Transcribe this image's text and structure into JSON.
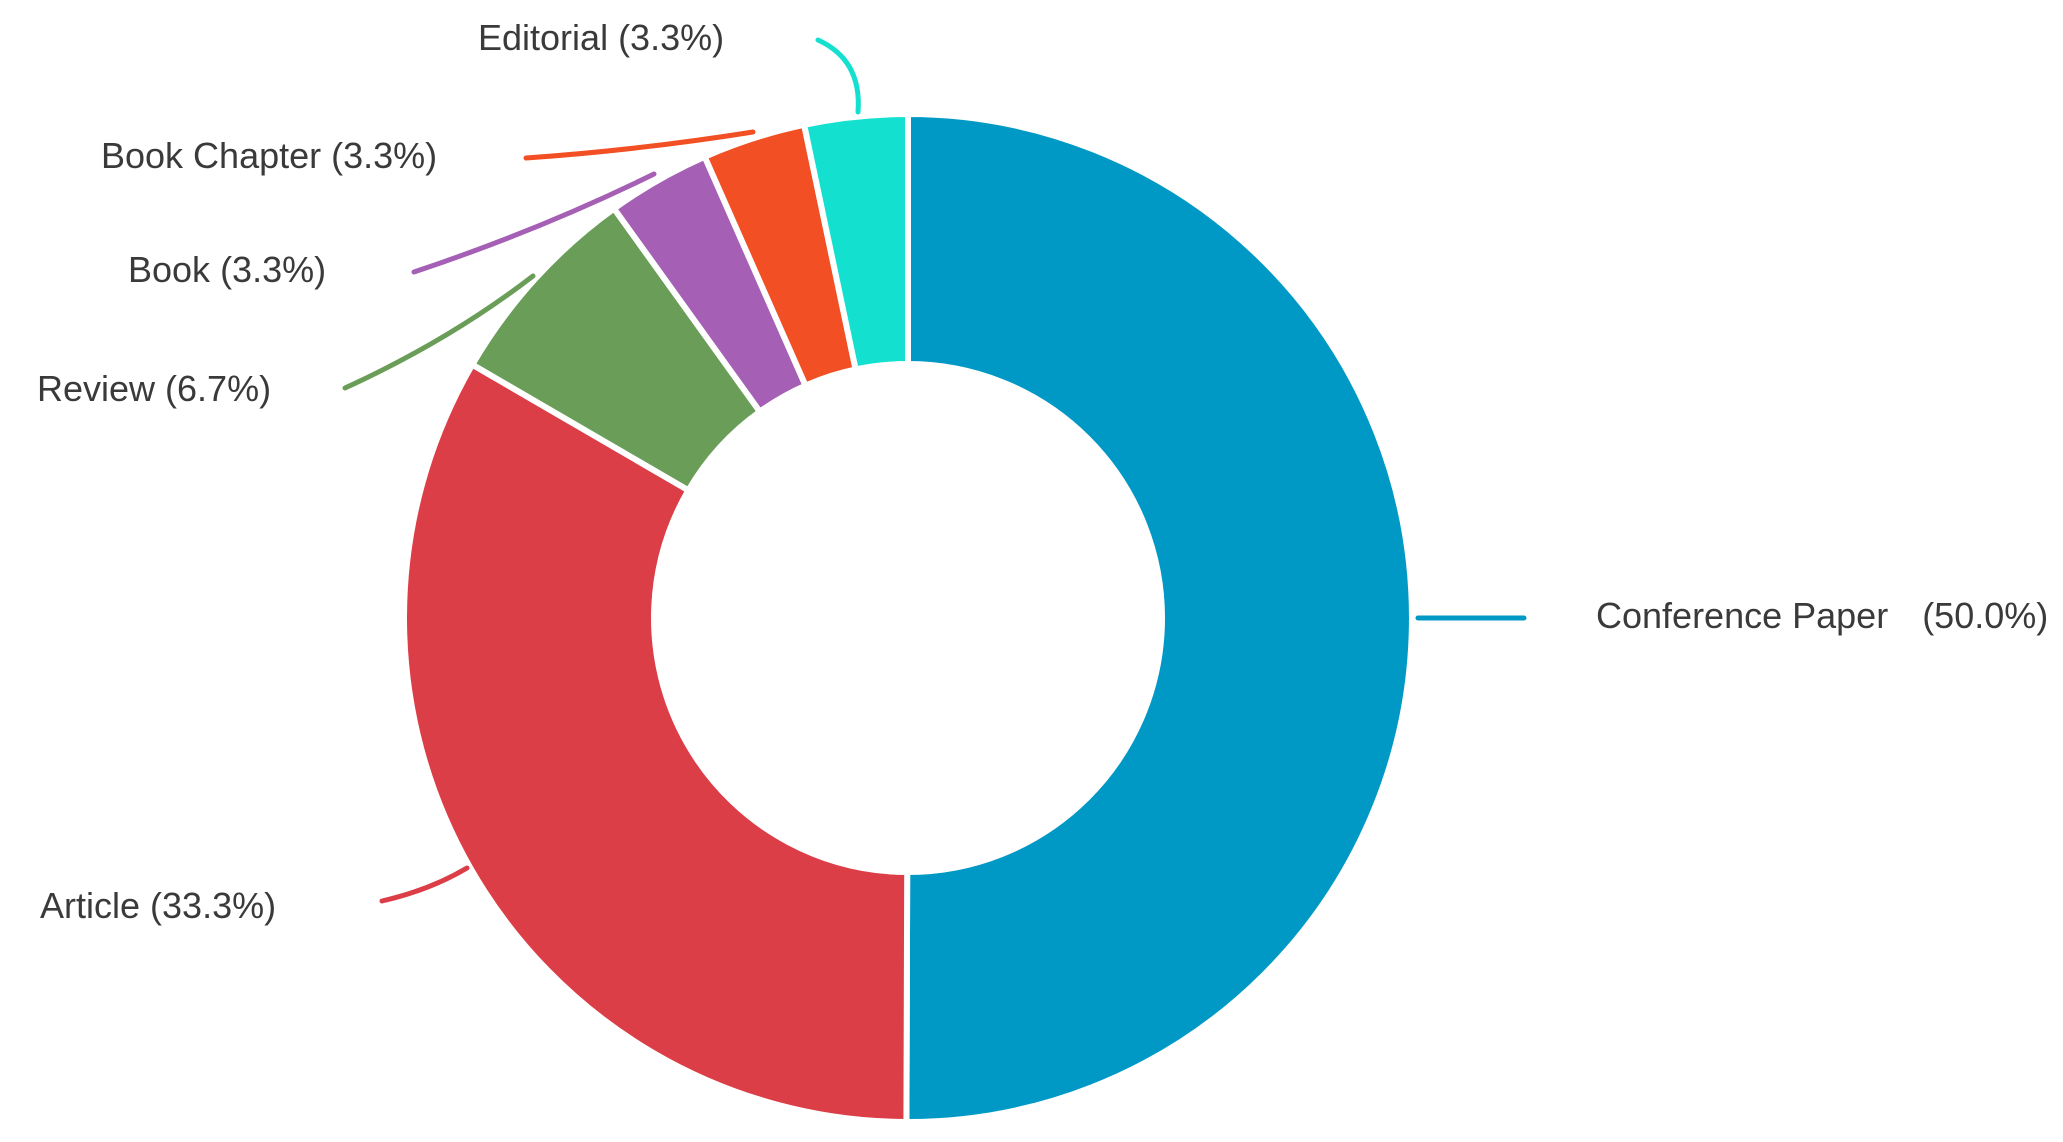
{
  "chart_data": {
    "type": "donut",
    "categories": [
      "Conference Paper",
      "Article",
      "Review",
      "Book",
      "Book Chapter",
      "Editorial"
    ],
    "values": [
      50.0,
      33.3,
      6.7,
      3.3,
      3.3,
      3.3
    ],
    "value_labels": [
      "(50.0%)",
      "(33.3%)",
      "(6.7%)",
      "(3.3%)",
      "(3.3%)",
      "(3.3%)"
    ],
    "colors": [
      "#0099c6",
      "#dc3e48",
      "#6a9e58",
      "#a55fb5",
      "#f24f24",
      "#14e0d0"
    ]
  }
}
